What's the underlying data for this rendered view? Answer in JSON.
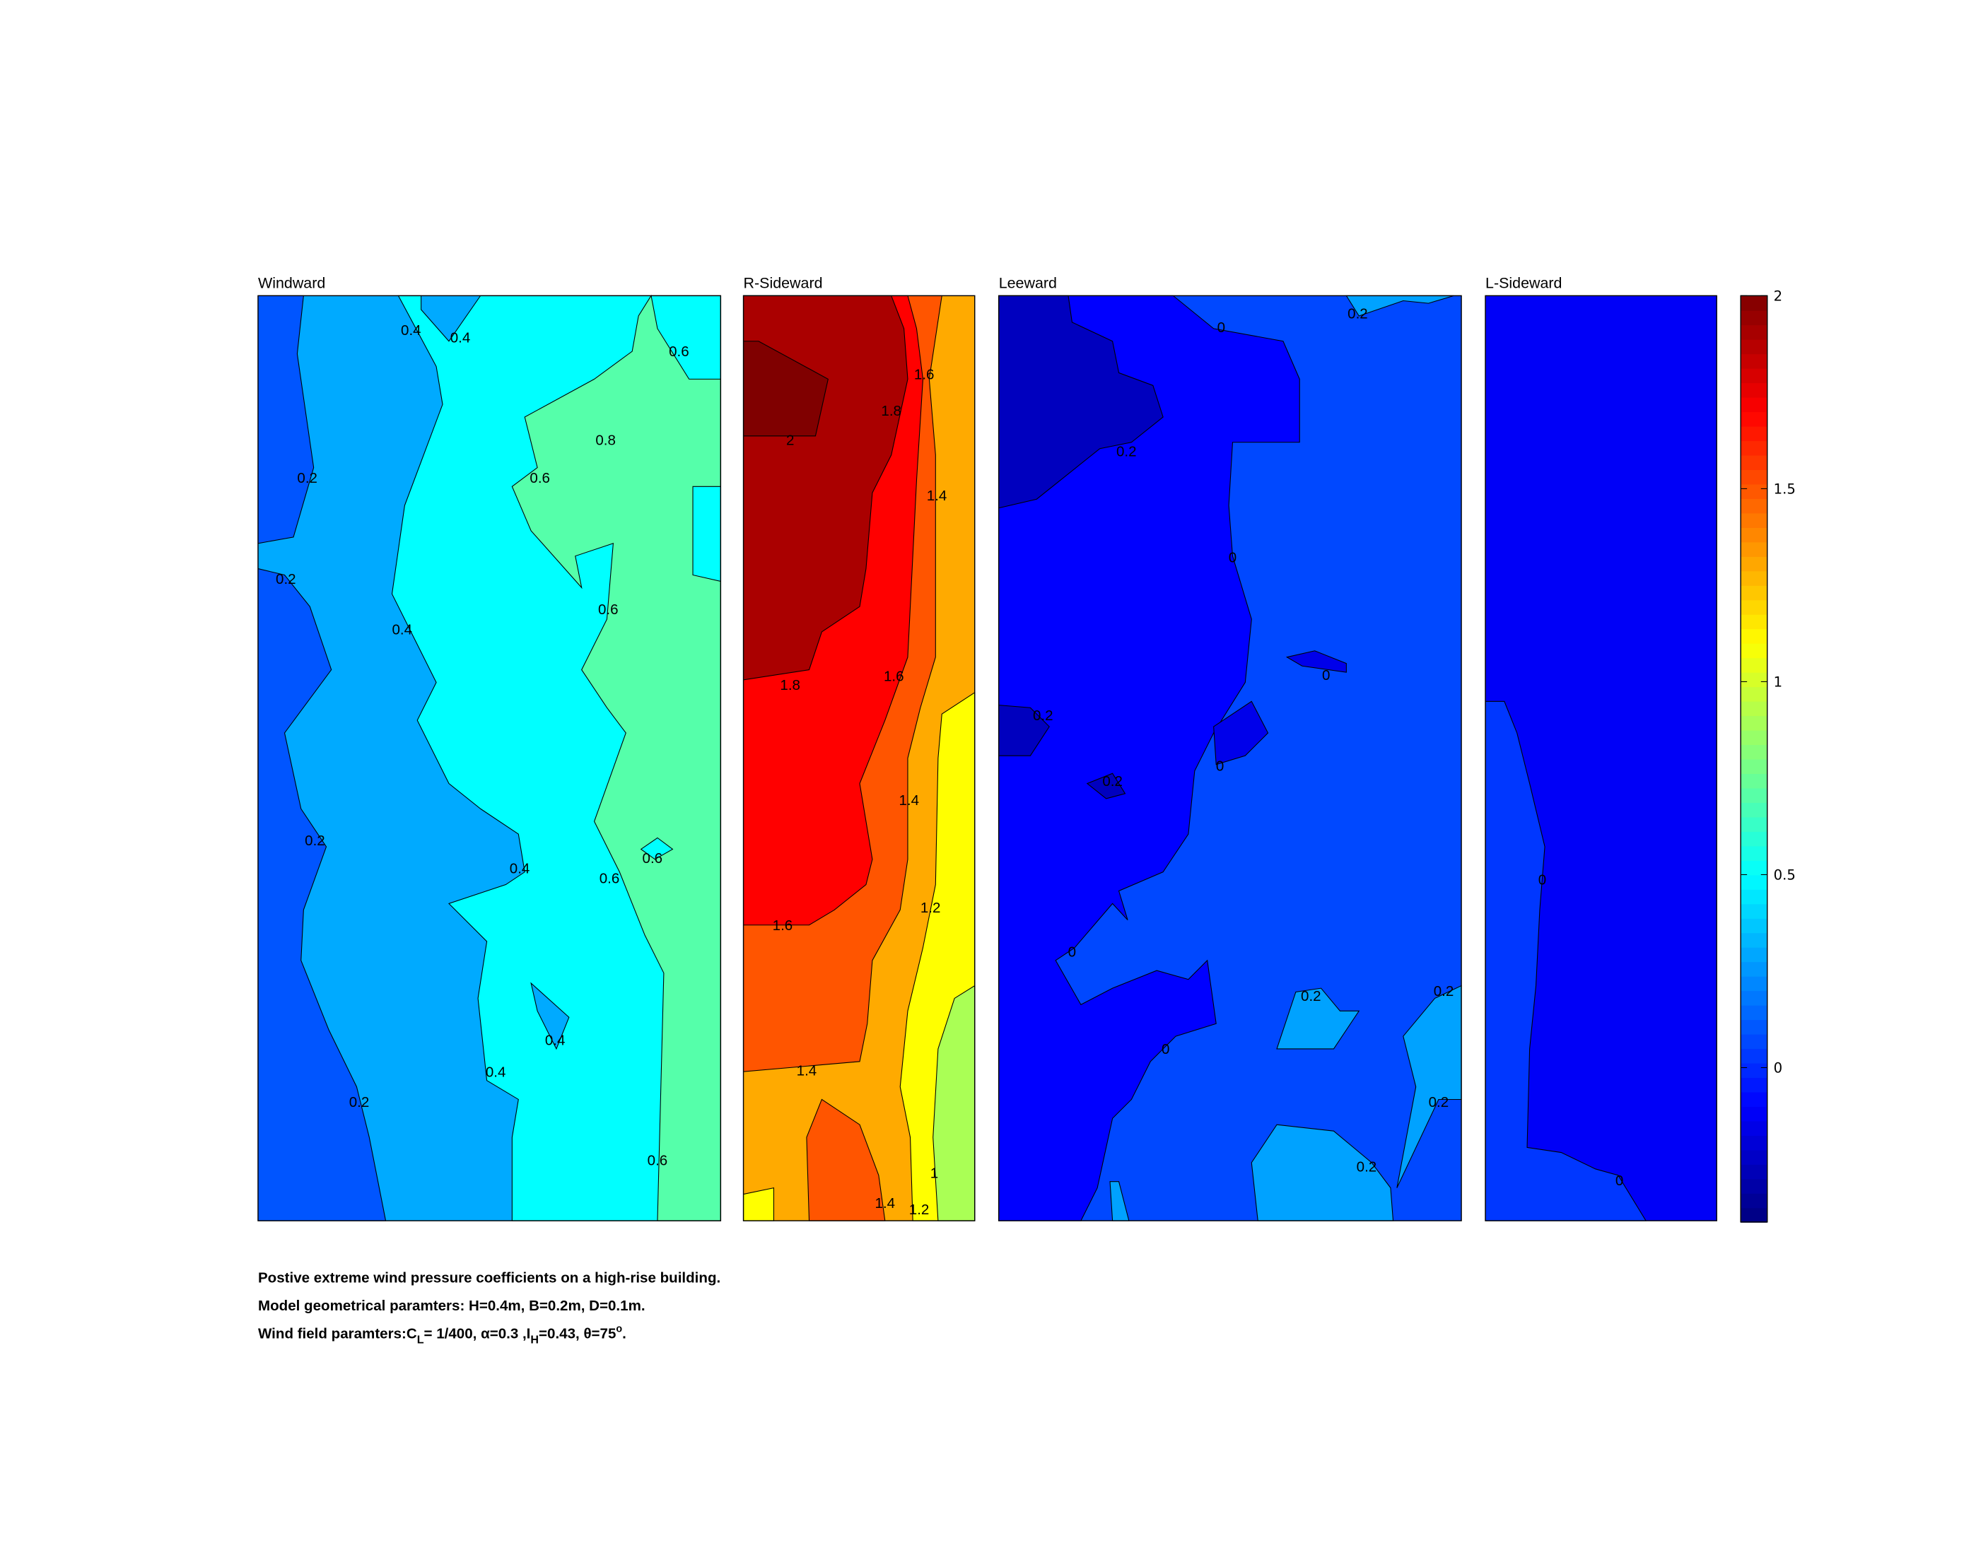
{
  "chart_data": {
    "type": "heatmap",
    "subtype": "filled-contour",
    "panels": [
      {
        "title": "Windward",
        "contour_labels": [
          "0.4",
          "0.4",
          "0.6",
          "0.8",
          "0.2",
          "0.6",
          "0.2",
          "0.6",
          "0.4",
          "0.2",
          "0.4",
          "0.6",
          "0.6",
          "0.4",
          "0.4",
          "0.2",
          "0.6"
        ]
      },
      {
        "title": "R-Sideward",
        "contour_labels": [
          "1.6",
          "1.8",
          "2",
          "1.4",
          "1.8",
          "1.6",
          "1.4",
          "1.2",
          "1.6",
          "1.4",
          "1.4",
          "1.2",
          "1"
        ]
      },
      {
        "title": "Leeward",
        "contour_labels": [
          "0.2",
          "0",
          "0.2",
          "0",
          "0",
          "0.2",
          "0",
          "0.2",
          "0",
          "0.2",
          "0.2",
          "0",
          "0.2",
          "0.2"
        ]
      },
      {
        "title": "L-Sideward",
        "contour_labels": [
          "0",
          "0"
        ]
      }
    ],
    "contour_levels": [
      -0.4,
      -0.2,
      0,
      0.2,
      0.4,
      0.6,
      0.8,
      1.0,
      1.2,
      1.4,
      1.6,
      1.8,
      2.0
    ],
    "colorbar": {
      "colormap": "jet",
      "range": [
        -0.4,
        2
      ],
      "ticks": [
        "0",
        "0.5",
        "1",
        "1.5",
        "2"
      ],
      "tick_values": [
        0,
        0.5,
        1,
        1.5,
        2
      ]
    },
    "grid": false
  },
  "caption": {
    "line1": "Postive extreme  wind pressure coefficients on a high-rise building.",
    "line2": "Model geometrical paramters: H=0.4m, B=0.2m, D=0.1m.",
    "line3_a": "Wind field paramters:C",
    "line3_sub1": "L",
    "line3_b": "= 1/400, α=0.3 ,I",
    "line3_sub2": "H",
    "line3_c": "=0.43, θ=75",
    "line3_sup": "o",
    "line3_d": "."
  }
}
